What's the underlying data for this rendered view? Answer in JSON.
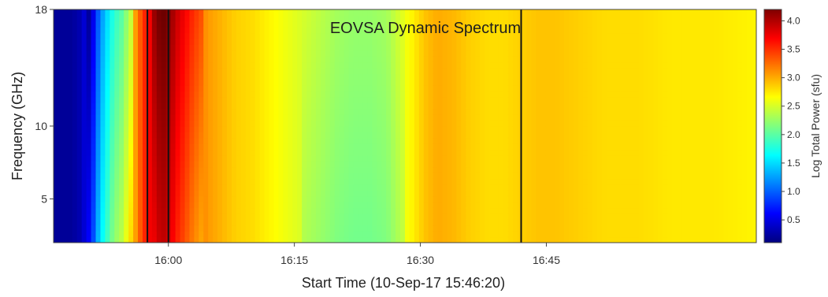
{
  "chart_data": {
    "type": "heatmap",
    "title": "EOVSA Dynamic Spectrum",
    "xlabel": "Start Time (10-Sep-17  15:46:20)",
    "ylabel": "Frequency (GHz)",
    "colorbar_label": "Log Total Power (sfu)",
    "x_ticks": [
      "16:00",
      "16:15",
      "16:30",
      "16:45"
    ],
    "x_tick_values_min": [
      960,
      975,
      990,
      1005
    ],
    "xlim_min": [
      946.33,
      1030
    ],
    "y_ticks": [
      "5",
      "10",
      "18"
    ],
    "y_tick_values_ghz": [
      5,
      10,
      18
    ],
    "ylim_ghz": [
      2,
      18
    ],
    "colorbar_ticks": [
      "0.5",
      "1.0",
      "1.5",
      "2.0",
      "2.5",
      "3.0",
      "3.5",
      "4.0"
    ],
    "colorbar_tick_values": [
      0.5,
      1.0,
      1.5,
      2.0,
      2.5,
      3.0,
      3.5,
      4.0
    ],
    "clim": [
      0.1,
      4.2
    ],
    "colormap": "jet",
    "vertical_markers_min": [
      957.5,
      960.0,
      1002.0
    ],
    "intensity_profile": {
      "time_min": [
        946.33,
        947.5,
        948.5,
        949.5,
        950.5,
        951.2,
        951.8,
        952.5,
        953.5,
        954.5,
        955.5,
        956.2,
        956.8,
        957.5,
        958.0,
        958.5,
        959.2,
        960.0,
        961.0,
        962.0,
        963.0,
        964.0,
        965.0,
        966.5,
        968.0,
        970.0,
        972.0,
        974.0,
        976.0,
        978.0,
        980.0,
        982.0,
        984.0,
        986.0,
        987.5,
        989.0,
        990.5,
        992.0,
        994.0,
        996.0,
        998.0,
        1000.0,
        1002.0,
        1004.0,
        1006.0,
        1009.0,
        1012.0,
        1016.0,
        1020.0,
        1025.0,
        1030.0
      ],
      "log_power": [
        0.2,
        0.2,
        0.2,
        0.3,
        0.6,
        1.0,
        1.5,
        1.8,
        2.2,
        2.4,
        2.8,
        3.1,
        3.4,
        3.65,
        3.8,
        3.95,
        4.1,
        4.0,
        3.7,
        3.5,
        3.3,
        3.15,
        3.05,
        2.95,
        2.85,
        2.8,
        2.7,
        2.6,
        2.5,
        2.4,
        2.3,
        2.25,
        2.25,
        2.3,
        2.5,
        2.7,
        2.9,
        3.0,
        2.95,
        2.85,
        2.8,
        2.8,
        2.85,
        2.9,
        2.9,
        2.85,
        2.8,
        2.8,
        2.75,
        2.75,
        2.7
      ]
    }
  }
}
